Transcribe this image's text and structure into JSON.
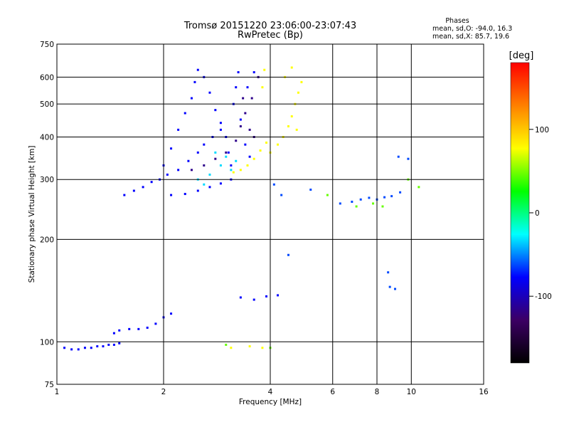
{
  "chart_data": {
    "type": "scatter",
    "title": "Tromsø 20151220 23:06:00-23:07:43",
    "subtitle": "RwPretec (Bp)",
    "xlabel": "Frequency [MHz]",
    "ylabel": "Stationary phase Virtual Height [km]",
    "x_scale": "log2",
    "y_scale": "log",
    "xlim": [
      1,
      16
    ],
    "ylim": [
      75,
      750
    ],
    "x_ticks": [
      1,
      2,
      4,
      6,
      8,
      10,
      16
    ],
    "y_ticks": [
      75,
      100,
      200,
      300,
      400,
      500,
      600,
      750
    ],
    "grid": true,
    "phases_box": {
      "title": "Phases",
      "line_o": "mean, sd,O: -94.0, 16.3",
      "line_x": "mean, sd,X:  85.7, 19.6"
    },
    "colorbar": {
      "label": "[deg]",
      "range": [
        -180,
        180
      ],
      "ticks": [
        100,
        0,
        -100
      ],
      "colors": [
        "#000000",
        "#3c0064",
        "#0000ff",
        "#00ffff",
        "#00ff00",
        "#ffff00",
        "#ff8000",
        "#ff0000"
      ]
    },
    "series": [
      {
        "name": "",
        "phase": -100,
        "points": [
          [
            1.05,
            96
          ],
          [
            1.1,
            95
          ],
          [
            1.15,
            95
          ],
          [
            1.2,
            96
          ],
          [
            1.25,
            96
          ],
          [
            1.3,
            97
          ],
          [
            1.35,
            97
          ],
          [
            1.4,
            98
          ],
          [
            1.45,
            98
          ],
          [
            1.5,
            99
          ],
          [
            1.45,
            106
          ],
          [
            1.5,
            108
          ],
          [
            1.6,
            109
          ],
          [
            1.7,
            109
          ],
          [
            1.8,
            110
          ],
          [
            1.9,
            113
          ],
          [
            2.0,
            118
          ],
          [
            2.1,
            121
          ],
          [
            1.55,
            270
          ],
          [
            1.65,
            278
          ],
          [
            1.75,
            285
          ],
          [
            1.85,
            295
          ],
          [
            1.95,
            300
          ],
          [
            2.05,
            310
          ],
          [
            2.1,
            270
          ],
          [
            2.3,
            272
          ],
          [
            2.5,
            278
          ],
          [
            2.7,
            285
          ],
          [
            2.9,
            292
          ],
          [
            3.1,
            300
          ],
          [
            2.0,
            330
          ],
          [
            2.1,
            370
          ],
          [
            2.2,
            420
          ],
          [
            2.3,
            470
          ],
          [
            2.4,
            520
          ],
          [
            2.45,
            580
          ],
          [
            2.5,
            630
          ],
          [
            2.6,
            600
          ],
          [
            2.7,
            540
          ],
          [
            2.8,
            480
          ],
          [
            2.9,
            440
          ],
          [
            3.0,
            400
          ],
          [
            3.05,
            360
          ],
          [
            3.1,
            330
          ],
          [
            2.2,
            320
          ],
          [
            2.35,
            340
          ],
          [
            2.5,
            360
          ],
          [
            2.6,
            380
          ],
          [
            2.75,
            400
          ],
          [
            2.9,
            420
          ],
          [
            3.15,
            500
          ],
          [
            3.2,
            560
          ],
          [
            3.25,
            620
          ],
          [
            3.3,
            450
          ],
          [
            3.4,
            380
          ],
          [
            3.5,
            350
          ],
          [
            3.45,
            560
          ],
          [
            3.6,
            620
          ],
          [
            3.3,
            135
          ],
          [
            3.6,
            133
          ],
          [
            3.9,
            136
          ],
          [
            4.2,
            137
          ]
        ]
      },
      {
        "name": "",
        "phase": -130,
        "points": [
          [
            2.4,
            320
          ],
          [
            2.6,
            330
          ],
          [
            2.8,
            345
          ],
          [
            3.0,
            360
          ],
          [
            3.2,
            390
          ],
          [
            3.3,
            430
          ],
          [
            3.4,
            470
          ],
          [
            3.35,
            520
          ],
          [
            3.5,
            420
          ],
          [
            3.6,
            400
          ],
          [
            3.55,
            520
          ],
          [
            3.7,
            600
          ]
        ]
      },
      {
        "name": "",
        "phase": -40,
        "points": [
          [
            2.5,
            300
          ],
          [
            2.7,
            310
          ],
          [
            2.9,
            330
          ],
          [
            3.0,
            350
          ],
          [
            2.8,
            360
          ],
          [
            3.1,
            320
          ],
          [
            3.2,
            340
          ],
          [
            2.6,
            290
          ]
        ]
      },
      {
        "name": "",
        "phase": 100,
        "points": [
          [
            3.15,
            315
          ],
          [
            3.3,
            320
          ],
          [
            3.45,
            330
          ],
          [
            3.6,
            345
          ],
          [
            3.75,
            365
          ],
          [
            3.9,
            385
          ],
          [
            4.0,
            360
          ],
          [
            4.2,
            380
          ],
          [
            4.35,
            400
          ],
          [
            4.5,
            430
          ],
          [
            4.6,
            460
          ],
          [
            4.7,
            500
          ],
          [
            4.8,
            540
          ],
          [
            4.9,
            580
          ],
          [
            3.8,
            560
          ],
          [
            3.85,
            630
          ],
          [
            4.4,
            600
          ],
          [
            4.6,
            640
          ],
          [
            4.75,
            420
          ],
          [
            3.1,
            96
          ],
          [
            3.5,
            97
          ],
          [
            3.8,
            96
          ]
        ]
      },
      {
        "name": "",
        "phase": -80,
        "points": [
          [
            6.3,
            255
          ],
          [
            6.8,
            258
          ],
          [
            7.2,
            262
          ],
          [
            7.6,
            265
          ],
          [
            8.0,
            262
          ],
          [
            8.4,
            266
          ],
          [
            8.8,
            268
          ],
          [
            9.3,
            275
          ],
          [
            8.7,
            145
          ],
          [
            9.0,
            143
          ],
          [
            8.6,
            160
          ],
          [
            4.5,
            180
          ],
          [
            9.2,
            350
          ],
          [
            9.8,
            345
          ],
          [
            4.1,
            290
          ],
          [
            4.3,
            270
          ],
          [
            5.2,
            280
          ]
        ]
      },
      {
        "name": "",
        "phase": 40,
        "points": [
          [
            7.0,
            250
          ],
          [
            7.8,
            255
          ],
          [
            8.3,
            250
          ],
          [
            9.8,
            300
          ],
          [
            10.5,
            285
          ],
          [
            5.8,
            270
          ],
          [
            3.0,
            98
          ],
          [
            4.0,
            96
          ]
        ]
      }
    ]
  }
}
